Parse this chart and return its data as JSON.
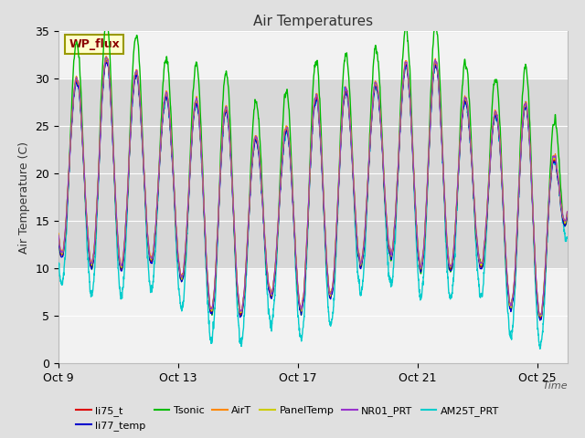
{
  "title": "Air Temperatures",
  "xlabel": "Time",
  "ylabel": "Air Temperature (C)",
  "ylim": [
    0,
    35
  ],
  "yticks": [
    0,
    5,
    10,
    15,
    20,
    25,
    30,
    35
  ],
  "xtick_labels": [
    "Oct 9",
    "Oct 13",
    "Oct 17",
    "Oct 21",
    "Oct 25"
  ],
  "xtick_positions": [
    0,
    4,
    8,
    12,
    16
  ],
  "shaded_band": [
    10,
    30
  ],
  "wp_flux_label": "WP_flux",
  "wp_flux_box_color": "#FFFFCC",
  "wp_flux_text_color": "#8B0000",
  "wp_flux_border_color": "#999900",
  "series": [
    {
      "name": "li75_t",
      "color": "#DD0000",
      "lw": 0.8,
      "zorder": 5
    },
    {
      "name": "li77_temp",
      "color": "#0000CC",
      "lw": 0.8,
      "zorder": 5
    },
    {
      "name": "Tsonic",
      "color": "#00BB00",
      "lw": 1.0,
      "zorder": 4
    },
    {
      "name": "AirT",
      "color": "#FF8800",
      "lw": 0.8,
      "zorder": 5
    },
    {
      "name": "PanelTemp",
      "color": "#CCCC00",
      "lw": 0.8,
      "zorder": 5
    },
    {
      "name": "NR01_PRT",
      "color": "#9933CC",
      "lw": 0.8,
      "zorder": 5
    },
    {
      "name": "AM25T_PRT",
      "color": "#00CCCC",
      "lw": 1.0,
      "zorder": 3
    }
  ],
  "background_color": "#E0E0E0",
  "plot_bg_color": "#F2F2F2",
  "grid_color": "#FFFFFF",
  "shaded_color": "#D8D8D8",
  "n_days": 17,
  "points_per_day": 288
}
